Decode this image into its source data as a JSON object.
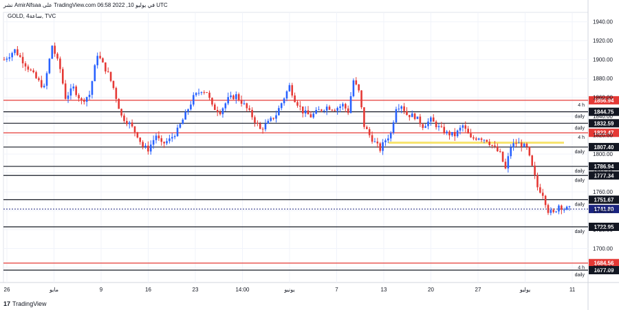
{
  "header": {
    "caption": "نشر AmirAlfsaa على TradingView.com 06:58 2022 ,10 في يوليو UTC",
    "symbol": "GOLD, 4ساعة, TVC"
  },
  "footer": {
    "brand": "TradingView"
  },
  "colors": {
    "up": "#2962ff",
    "down": "#e53935",
    "support": "#131722",
    "resistance": "#e53935",
    "zone": "#f7e36b",
    "current": "#1a237e"
  },
  "chart_data": {
    "type": "candlestick",
    "y_axis": {
      "range": [
        1664,
        1950
      ],
      "ticks": [
        1940,
        1920,
        1900,
        1880,
        1860,
        1840,
        1820,
        1800,
        1780,
        1760,
        1740,
        1720,
        1700,
        1680
      ]
    },
    "x_axis": {
      "ticks": [
        "26",
        "مايو",
        "9",
        "16",
        "23",
        "14:00",
        "يونيو",
        "7",
        "13",
        "20",
        "27",
        "يوليو",
        "11"
      ]
    },
    "levels": [
      {
        "value": 1856.94,
        "label": "1856.94",
        "kind": "resistance",
        "note": "4 h"
      },
      {
        "value": 1844.75,
        "label": "1844.75",
        "kind": "support",
        "note": "daily"
      },
      {
        "value": 1832.59,
        "label": "1832.59",
        "kind": "support",
        "note": "daily"
      },
      {
        "value": 1822.47,
        "label": "1822.47",
        "kind": "resistance",
        "note": "4 h"
      },
      {
        "value": 1807.4,
        "label": "1807.40",
        "kind": "support",
        "note": "daily"
      },
      {
        "value": 1786.94,
        "label": "1786.94",
        "kind": "support",
        "note": "daily"
      },
      {
        "value": 1777.34,
        "label": "1777.34",
        "kind": "support",
        "note": "daily"
      },
      {
        "value": 1751.67,
        "label": "1751.67",
        "kind": "support",
        "note": "daily"
      },
      {
        "value": 1722.95,
        "label": "1722.95",
        "kind": "support",
        "note": "daily"
      },
      {
        "value": 1684.56,
        "label": "1684.56",
        "kind": "resistance",
        "note": "4 h"
      },
      {
        "value": 1677.09,
        "label": "1677.09",
        "kind": "support",
        "note": "daily"
      }
    ],
    "highlight_zone": {
      "value": 1812
    },
    "current_price": {
      "value": 1741.8,
      "label": "1741.80"
    },
    "price_path": [
      [
        0,
        1900
      ],
      [
        4,
        1910
      ],
      [
        8,
        1895
      ],
      [
        12,
        1880
      ],
      [
        15,
        1870
      ],
      [
        18,
        1915
      ],
      [
        21,
        1890
      ],
      [
        23,
        1860
      ],
      [
        26,
        1870
      ],
      [
        29,
        1856
      ],
      [
        32,
        1863
      ],
      [
        35,
        1906
      ],
      [
        37,
        1895
      ],
      [
        39,
        1885
      ],
      [
        41,
        1870
      ],
      [
        44,
        1840
      ],
      [
        47,
        1832
      ],
      [
        50,
        1820
      ],
      [
        52,
        1808
      ],
      [
        54,
        1805
      ],
      [
        57,
        1820
      ],
      [
        59,
        1810
      ],
      [
        62,
        1815
      ],
      [
        65,
        1825
      ],
      [
        68,
        1842
      ],
      [
        71,
        1860
      ],
      [
        74,
        1868
      ],
      [
        76,
        1866
      ],
      [
        78,
        1850
      ],
      [
        81,
        1845
      ],
      [
        84,
        1858
      ],
      [
        87,
        1862
      ],
      [
        90,
        1852
      ],
      [
        93,
        1840
      ],
      [
        96,
        1826
      ],
      [
        99,
        1833
      ],
      [
        102,
        1842
      ],
      [
        105,
        1860
      ],
      [
        107,
        1872
      ],
      [
        109,
        1858
      ],
      [
        112,
        1845
      ],
      [
        115,
        1840
      ],
      [
        118,
        1846
      ],
      [
        121,
        1850
      ],
      [
        124,
        1848
      ],
      [
        127,
        1852
      ],
      [
        129,
        1845
      ],
      [
        131,
        1878
      ],
      [
        133,
        1866
      ],
      [
        135,
        1830
      ],
      [
        137,
        1820
      ],
      [
        139,
        1812
      ],
      [
        141,
        1805
      ],
      [
        143,
        1815
      ],
      [
        145,
        1822
      ],
      [
        147,
        1850
      ],
      [
        149,
        1852
      ],
      [
        151,
        1842
      ],
      [
        154,
        1840
      ],
      [
        157,
        1830
      ],
      [
        160,
        1836
      ],
      [
        163,
        1828
      ],
      [
        166,
        1822
      ],
      [
        169,
        1820
      ],
      [
        172,
        1830
      ],
      [
        175,
        1816
      ],
      [
        178,
        1818
      ],
      [
        181,
        1815
      ],
      [
        184,
        1806
      ],
      [
        186,
        1800
      ],
      [
        188,
        1784
      ],
      [
        190,
        1808
      ],
      [
        192,
        1812
      ],
      [
        194,
        1810
      ],
      [
        196,
        1806
      ],
      [
        198,
        1786
      ],
      [
        200,
        1765
      ],
      [
        202,
        1758
      ],
      [
        204,
        1740
      ],
      [
        206,
        1737
      ],
      [
        208,
        1746
      ],
      [
        210,
        1742
      ],
      [
        212,
        1742
      ]
    ]
  }
}
